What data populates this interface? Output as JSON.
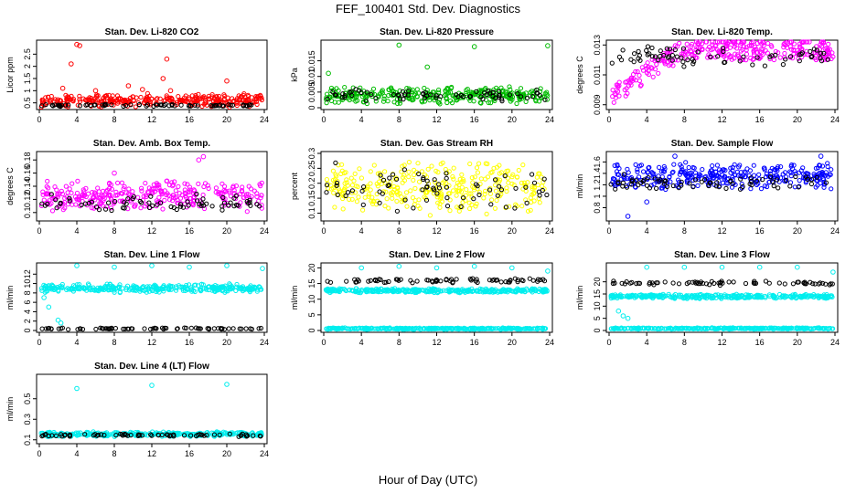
{
  "title": "FEF_100401  Std. Dev. Diagnostics",
  "xlabel": "Hour of Day (UTC)",
  "chart_data": [
    {
      "type": "scatter",
      "title": "Stan. Dev. Li-820 CO2",
      "ylabel": "Licor ppm",
      "xlim": [
        0,
        24
      ],
      "ylim": [
        0.3,
        3.0
      ],
      "xticks": [
        0,
        4,
        8,
        12,
        16,
        20,
        24
      ],
      "yticks": [
        0.5,
        1.0,
        1.5,
        2.0,
        2.5
      ],
      "series": [
        {
          "color": "#ff0000",
          "band": [
            0.3,
            0.9
          ],
          "outliers": [
            [
              4,
              2.9
            ],
            [
              4.3,
              2.85
            ],
            [
              3.4,
              2.1
            ],
            [
              13.6,
              2.3
            ],
            [
              13.2,
              1.5
            ],
            [
              20,
              1.4
            ],
            [
              2.5,
              1.1
            ],
            [
              9.5,
              1.2
            ],
            [
              6,
              1.0
            ],
            [
              11,
              1.05
            ],
            [
              14,
              1.0
            ]
          ]
        },
        {
          "color": "#000000",
          "band": [
            0.35,
            0.45
          ],
          "outliers": []
        }
      ]
    },
    {
      "type": "scatter",
      "title": "Stan. Dev. Li-820 Pressure",
      "ylabel": "kPa",
      "xlim": [
        0,
        24
      ],
      "ylim": [
        0,
        0.021
      ],
      "xticks": [
        0,
        4,
        8,
        12,
        16,
        20,
        24
      ],
      "yticks": [
        0.0,
        0.005,
        0.01,
        0.015
      ],
      "series": [
        {
          "color": "#00bb00",
          "band": [
            0.001,
            0.007
          ],
          "outliers": [
            [
              8,
              0.02
            ],
            [
              16,
              0.0195
            ],
            [
              23.8,
              0.0198
            ],
            [
              11,
              0.013
            ],
            [
              0.5,
              0.011
            ]
          ]
        },
        {
          "color": "#000000",
          "band": [
            0.002,
            0.006
          ],
          "outliers": []
        }
      ]
    },
    {
      "type": "scatter",
      "title": "Stan. Dev. Li-820 Temp.",
      "ylabel": "degrees C",
      "xlim": [
        0,
        24
      ],
      "ylim": [
        0.0088,
        0.0132
      ],
      "xticks": [
        0,
        4,
        8,
        12,
        16,
        20,
        24
      ],
      "yticks": [
        0.009,
        0.011,
        0.013
      ],
      "series": [
        {
          "color": "#ff00ff",
          "band": [
            0.0092,
            0.013
          ],
          "outliers": []
        },
        {
          "color": "#000000",
          "band": [
            0.0115,
            0.013
          ],
          "outliers": []
        }
      ]
    },
    {
      "type": "scatter",
      "title": "Stan. Dev. Amb. Box Temp.",
      "ylabel": "degrees C",
      "xlim": [
        0,
        24
      ],
      "ylim": [
        0.09,
        0.19
      ],
      "xticks": [
        0,
        4,
        8,
        12,
        16,
        20,
        24
      ],
      "yticks": [
        0.1,
        0.12,
        0.14,
        0.16,
        0.18
      ],
      "series": [
        {
          "color": "#ff00ff",
          "band": [
            0.1,
            0.15
          ],
          "outliers": [
            [
              17.5,
              0.185
            ],
            [
              17,
              0.18
            ],
            [
              8,
              0.16
            ]
          ]
        },
        {
          "color": "#000000",
          "band": [
            0.1,
            0.13
          ],
          "outliers": []
        }
      ]
    },
    {
      "type": "scatter",
      "title": "Stan. Dev. Gas Stream RH",
      "ylabel": "percent",
      "xlim": [
        0,
        24
      ],
      "ylim": [
        0.08,
        0.3
      ],
      "xticks": [
        0,
        4,
        8,
        12,
        16,
        20,
        24
      ],
      "yticks": [
        0.1,
        0.15,
        0.2,
        0.25,
        0.3
      ],
      "series": [
        {
          "color": "#ffff00",
          "band": [
            0.09,
            0.28
          ],
          "outliers": []
        },
        {
          "color": "#000000",
          "band": [
            0.1,
            0.27
          ],
          "outliers": []
        }
      ]
    },
    {
      "type": "scatter",
      "title": "Stan. Dev. Sample Flow",
      "ylabel": "ml/min",
      "xlim": [
        0,
        24
      ],
      "ylim": [
        0.6,
        1.75
      ],
      "xticks": [
        0,
        4,
        8,
        12,
        16,
        20,
        24
      ],
      "yticks": [
        0.8,
        1.0,
        1.2,
        1.4,
        1.6
      ],
      "series": [
        {
          "color": "#0000ff",
          "band": [
            1.1,
            1.6
          ],
          "outliers": [
            [
              2,
              0.65
            ],
            [
              4,
              0.9
            ],
            [
              22.5,
              1.7
            ],
            [
              7,
              1.7
            ]
          ]
        },
        {
          "color": "#000000",
          "band": [
            1.1,
            1.4
          ],
          "outliers": []
        }
      ]
    },
    {
      "type": "scatter",
      "title": "Stan. Dev. Line 1 Flow",
      "ylabel": "ml/min",
      "xlim": [
        0,
        24
      ],
      "ylim": [
        0,
        14
      ],
      "xticks": [
        0,
        4,
        8,
        12,
        16,
        20,
        24
      ],
      "yticks": [
        0,
        2,
        4,
        6,
        8,
        10,
        12
      ],
      "series": [
        {
          "color": "#00eeee",
          "band": [
            8,
            10
          ],
          "outliers": [
            [
              4,
              13.8
            ],
            [
              8,
              13.5
            ],
            [
              12,
              13.8
            ],
            [
              16,
              13.5
            ],
            [
              20,
              13.8
            ],
            [
              23.8,
              13.2
            ],
            [
              1,
              5
            ],
            [
              2,
              2.2
            ],
            [
              2.3,
              1.6
            ],
            [
              0.5,
              7
            ]
          ]
        },
        {
          "color": "#000000",
          "band": [
            0.2,
            0.6
          ],
          "outliers": []
        }
      ]
    },
    {
      "type": "scatter",
      "title": "Stan. Dev. Line 2 Flow",
      "ylabel": "ml/min",
      "xlim": [
        0,
        24
      ],
      "ylim": [
        0,
        21
      ],
      "xticks": [
        0,
        4,
        8,
        12,
        16,
        20,
        24
      ],
      "yticks": [
        0,
        5,
        10,
        15,
        20
      ],
      "series": [
        {
          "color": "#00eeee",
          "band": [
            12,
            13.5
          ],
          "outliers": [
            [
              4,
              20
            ],
            [
              8,
              20.5
            ],
            [
              12,
              20
            ],
            [
              16,
              20.5
            ],
            [
              20,
              20
            ],
            [
              23.8,
              19
            ]
          ]
        },
        {
          "color": "#00eeee",
          "band": [
            0.3,
            0.9
          ],
          "outliers": []
        },
        {
          "color": "#000000",
          "band": [
            15,
            17
          ],
          "outliers": []
        }
      ]
    },
    {
      "type": "scatter",
      "title": "Stan. Dev. Line 3 Flow",
      "ylabel": "ml/min",
      "xlim": [
        0,
        24
      ],
      "ylim": [
        0,
        27
      ],
      "xticks": [
        0,
        4,
        8,
        12,
        16,
        20,
        24
      ],
      "yticks": [
        0,
        5,
        10,
        15,
        20
      ],
      "series": [
        {
          "color": "#00eeee",
          "band": [
            13,
            15
          ],
          "outliers": [
            [
              4,
              26
            ],
            [
              8,
              26
            ],
            [
              12,
              26
            ],
            [
              16,
              26
            ],
            [
              20,
              26
            ],
            [
              23.8,
              24
            ],
            [
              1,
              8
            ],
            [
              1.5,
              6
            ],
            [
              2,
              5
            ]
          ]
        },
        {
          "color": "#00eeee",
          "band": [
            0.5,
            1.2
          ],
          "outliers": []
        },
        {
          "color": "#000000",
          "band": [
            18.5,
            20.5
          ],
          "outliers": []
        }
      ]
    },
    {
      "type": "scatter",
      "title": "Stan. Dev. Line 4 (LT) Flow",
      "ylabel": "ml/min",
      "xlim": [
        0,
        24
      ],
      "ylim": [
        0.08,
        0.72
      ],
      "xticks": [
        0,
        4,
        8,
        12,
        16,
        20,
        24
      ],
      "yticks": [
        0.1,
        0.3,
        0.5
      ],
      "series": [
        {
          "color": "#00eeee",
          "band": [
            0.13,
            0.18
          ],
          "outliers": [
            [
              4,
              0.6
            ],
            [
              12,
              0.63
            ],
            [
              20,
              0.64
            ]
          ]
        },
        {
          "color": "#000000",
          "band": [
            0.13,
            0.16
          ],
          "outliers": []
        }
      ]
    }
  ]
}
